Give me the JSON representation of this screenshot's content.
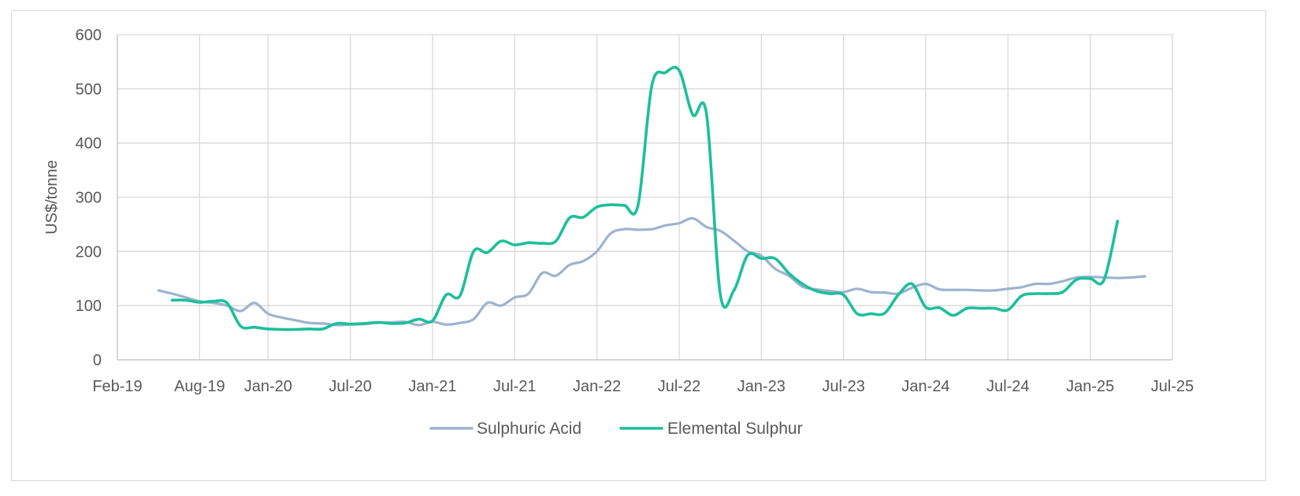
{
  "chart_data": {
    "type": "line",
    "title": "",
    "xlabel": "",
    "ylabel": "US$/tonne",
    "ylim": [
      0,
      600
    ],
    "yticks": [
      0,
      100,
      200,
      300,
      400,
      500,
      600
    ],
    "xlim": [
      "2019-02",
      "2025-07"
    ],
    "xticks": [
      "Feb-19",
      "Aug-19",
      "Jan-20",
      "Jul-20",
      "Jan-21",
      "Jul-21",
      "Jan-22",
      "Jul-22",
      "Jan-23",
      "Jul-23",
      "Jan-24",
      "Jul-24",
      "Jan-25",
      "Jul-25"
    ],
    "grid": true,
    "legend_position": "bottom",
    "series": [
      {
        "name": "Sulphuric Acid",
        "color": "#9db3cf",
        "points": [
          [
            "2019-05",
            128
          ],
          [
            "2019-06",
            122
          ],
          [
            "2019-07",
            115
          ],
          [
            "2019-08",
            108
          ],
          [
            "2019-09",
            105
          ],
          [
            "2019-10",
            100
          ],
          [
            "2019-11",
            90
          ],
          [
            "2019-12",
            105
          ],
          [
            "2020-01",
            85
          ],
          [
            "2020-02",
            78
          ],
          [
            "2020-03",
            73
          ],
          [
            "2020-04",
            68
          ],
          [
            "2020-05",
            67
          ],
          [
            "2020-06",
            64
          ],
          [
            "2020-07",
            65
          ],
          [
            "2020-08",
            66
          ],
          [
            "2020-09",
            68
          ],
          [
            "2020-10",
            69
          ],
          [
            "2020-11",
            70
          ],
          [
            "2020-12",
            64
          ],
          [
            "2021-01",
            70
          ],
          [
            "2021-02",
            65
          ],
          [
            "2021-03",
            68
          ],
          [
            "2021-04",
            75
          ],
          [
            "2021-05",
            105
          ],
          [
            "2021-06",
            100
          ],
          [
            "2021-07",
            115
          ],
          [
            "2021-08",
            122
          ],
          [
            "2021-09",
            160
          ],
          [
            "2021-10",
            155
          ],
          [
            "2021-11",
            175
          ],
          [
            "2021-12",
            182
          ],
          [
            "2022-01",
            200
          ],
          [
            "2022-02",
            233
          ],
          [
            "2022-03",
            241
          ],
          [
            "2022-04",
            240
          ],
          [
            "2022-05",
            241
          ],
          [
            "2022-06",
            248
          ],
          [
            "2022-07",
            252
          ],
          [
            "2022-08",
            261
          ],
          [
            "2022-09",
            245
          ],
          [
            "2022-10",
            238
          ],
          [
            "2022-11",
            220
          ],
          [
            "2022-12",
            200
          ],
          [
            "2023-01",
            192
          ],
          [
            "2023-02",
            168
          ],
          [
            "2023-03",
            155
          ],
          [
            "2023-04",
            135
          ],
          [
            "2023-05",
            130
          ],
          [
            "2023-06",
            127
          ],
          [
            "2023-07",
            125
          ],
          [
            "2023-08",
            131
          ],
          [
            "2023-09",
            125
          ],
          [
            "2023-10",
            124
          ],
          [
            "2023-11",
            122
          ],
          [
            "2023-12",
            133
          ],
          [
            "2024-01",
            140
          ],
          [
            "2024-02",
            130
          ],
          [
            "2024-03",
            129
          ],
          [
            "2024-04",
            129
          ],
          [
            "2024-05",
            128
          ],
          [
            "2024-06",
            128
          ],
          [
            "2024-07",
            131
          ],
          [
            "2024-08",
            134
          ],
          [
            "2024-09",
            140
          ],
          [
            "2024-10",
            140
          ],
          [
            "2024-11",
            145
          ],
          [
            "2024-12",
            152
          ],
          [
            "2025-01",
            153
          ],
          [
            "2025-02",
            152
          ],
          [
            "2025-03",
            151
          ],
          [
            "2025-04",
            152
          ],
          [
            "2025-05",
            154
          ]
        ]
      },
      {
        "name": "Elemental Sulphur",
        "color": "#1dbf9b",
        "points": [
          [
            "2019-06",
            110
          ],
          [
            "2019-07",
            110
          ],
          [
            "2019-08",
            106
          ],
          [
            "2019-09",
            108
          ],
          [
            "2019-10",
            105
          ],
          [
            "2019-11",
            62
          ],
          [
            "2019-12",
            60
          ],
          [
            "2020-01",
            57
          ],
          [
            "2020-02",
            56
          ],
          [
            "2020-03",
            56
          ],
          [
            "2020-04",
            57
          ],
          [
            "2020-05",
            57
          ],
          [
            "2020-06",
            67
          ],
          [
            "2020-07",
            66
          ],
          [
            "2020-08",
            67
          ],
          [
            "2020-09",
            69
          ],
          [
            "2020-10",
            67
          ],
          [
            "2020-11",
            68
          ],
          [
            "2020-12",
            75
          ],
          [
            "2021-01",
            72
          ],
          [
            "2021-02",
            120
          ],
          [
            "2021-03",
            118
          ],
          [
            "2021-04",
            200
          ],
          [
            "2021-05",
            198
          ],
          [
            "2021-06",
            219
          ],
          [
            "2021-07",
            212
          ],
          [
            "2021-08",
            216
          ],
          [
            "2021-09",
            215
          ],
          [
            "2021-10",
            219
          ],
          [
            "2021-11",
            262
          ],
          [
            "2021-12",
            263
          ],
          [
            "2022-01",
            282
          ],
          [
            "2022-02",
            286
          ],
          [
            "2022-03",
            285
          ],
          [
            "2022-04",
            285
          ],
          [
            "2022-05",
            505
          ],
          [
            "2022-06",
            530
          ],
          [
            "2022-07",
            534
          ],
          [
            "2022-08",
            452
          ],
          [
            "2022-09",
            453
          ],
          [
            "2022-10",
            122
          ],
          [
            "2022-11",
            128
          ],
          [
            "2022-12",
            193
          ],
          [
            "2023-01",
            187
          ],
          [
            "2023-02",
            187
          ],
          [
            "2023-03",
            160
          ],
          [
            "2023-04",
            140
          ],
          [
            "2023-05",
            127
          ],
          [
            "2023-06",
            122
          ],
          [
            "2023-07",
            120
          ],
          [
            "2023-08",
            85
          ],
          [
            "2023-09",
            85
          ],
          [
            "2023-10",
            86
          ],
          [
            "2023-11",
            120
          ],
          [
            "2023-12",
            140
          ],
          [
            "2024-01",
            97
          ],
          [
            "2024-02",
            96
          ],
          [
            "2024-03",
            82
          ],
          [
            "2024-04",
            95
          ],
          [
            "2024-05",
            95
          ],
          [
            "2024-06",
            95
          ],
          [
            "2024-07",
            92
          ],
          [
            "2024-08",
            118
          ],
          [
            "2024-09",
            122
          ],
          [
            "2024-10",
            122
          ],
          [
            "2024-11",
            125
          ],
          [
            "2024-12",
            148
          ],
          [
            "2025-01",
            150
          ],
          [
            "2025-02",
            147
          ],
          [
            "2025-03",
            256
          ]
        ]
      }
    ]
  }
}
